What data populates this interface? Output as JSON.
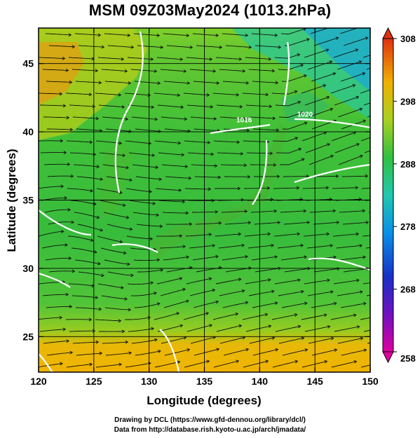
{
  "title": "MSM 09Z03May2024 (1013.2hPa)",
  "footer": {
    "line1": "Drawing by DCL (https://www.gfd-dennou.org/library/dcl/)",
    "line2": "Data from http://database.rish.kyoto-u.ac.jp/arch/jmadata/"
  },
  "map": {
    "lon_range": [
      120,
      150
    ],
    "lat_range": [
      22.4,
      47.6
    ],
    "xlabel": "Longitude (degrees)",
    "ylabel": "Latitude  (degrees)",
    "x_ticks": [
      {
        "value": 120,
        "label": "120"
      },
      {
        "value": 125,
        "label": "125"
      },
      {
        "value": 130,
        "label": "130"
      },
      {
        "value": 135,
        "label": "135"
      },
      {
        "value": 140,
        "label": "140"
      },
      {
        "value": 145,
        "label": "145"
      },
      {
        "value": 150,
        "label": "150"
      }
    ],
    "y_ticks": [
      {
        "value": 25,
        "label": "25"
      },
      {
        "value": 30,
        "label": "30"
      },
      {
        "value": 35,
        "label": "35"
      },
      {
        "value": 40,
        "label": "40"
      },
      {
        "value": 45,
        "label": "45"
      }
    ],
    "grid": true,
    "isobar_labels": [
      {
        "text": "1016",
        "lon": 138.6,
        "lat": 40.7
      },
      {
        "text": "1020",
        "lon": 144.1,
        "lat": 41.1
      }
    ]
  },
  "colorbar": {
    "range": [
      258,
      308
    ],
    "labels": [
      "308",
      "298",
      "288",
      "278",
      "268",
      "258"
    ],
    "colors": [
      "#e0008a",
      "#1a1ab8",
      "#0090e8",
      "#20c8a8",
      "#30c040",
      "#a8d018",
      "#f0b000",
      "#e04010"
    ]
  }
}
